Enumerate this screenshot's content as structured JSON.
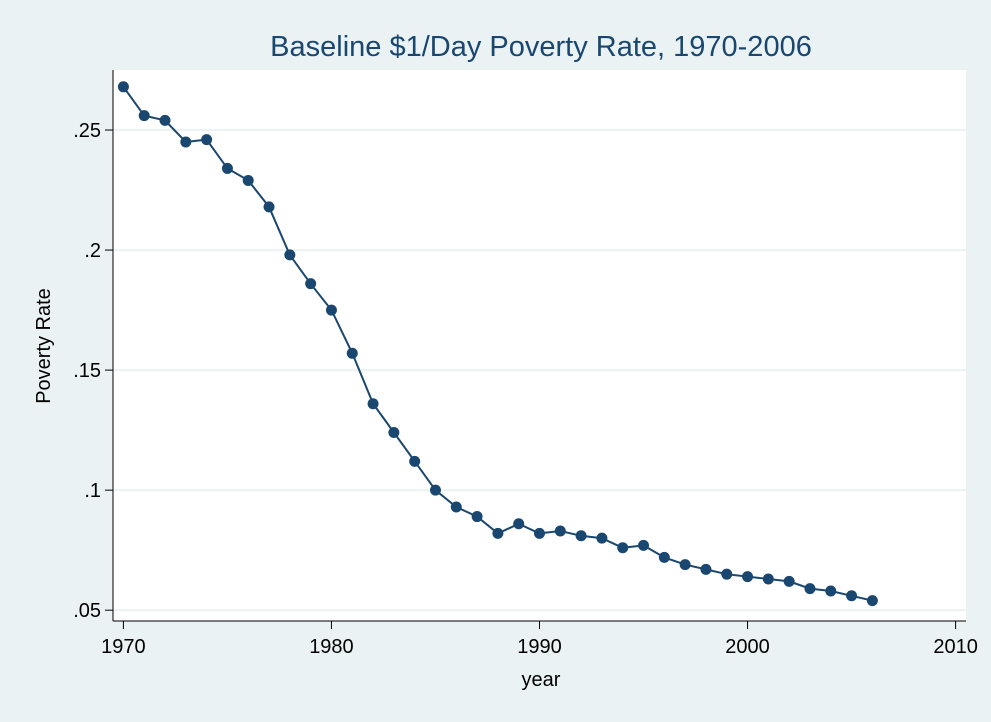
{
  "chart_data": {
    "type": "line",
    "title": "Baseline $1/Day Poverty Rate, 1970-2006",
    "xlabel": "year",
    "ylabel": "Poverty Rate",
    "xlim": [
      1969.5,
      2010.5
    ],
    "ylim": [
      0.0455,
      0.275
    ],
    "xticks": [
      1970,
      1980,
      1990,
      2000,
      2010
    ],
    "xtick_labels": [
      "1970",
      "1980",
      "1990",
      "2000",
      "2010"
    ],
    "yticks": [
      0.05,
      0.1,
      0.15,
      0.2,
      0.25
    ],
    "ytick_labels": [
      ".05",
      ".1",
      ".15",
      ".2",
      ".25"
    ],
    "grid": true,
    "colors": {
      "background": "#eaf2f3",
      "plot_area": "#ffffff",
      "gridline": "#eaf2f3",
      "series": "#1a476f",
      "title": "#1a476f"
    },
    "series": [
      {
        "x": [
          1970,
          1971,
          1972,
          1973,
          1974,
          1975,
          1976,
          1977,
          1978,
          1979,
          1980,
          1981,
          1982,
          1983,
          1984,
          1985,
          1986,
          1987,
          1988,
          1989,
          1990,
          1991,
          1992,
          1993,
          1994,
          1995,
          1996,
          1997,
          1998,
          1999,
          2000,
          2001,
          2002,
          2003,
          2004,
          2005,
          2006
        ],
        "values": [
          0.268,
          0.256,
          0.254,
          0.245,
          0.246,
          0.234,
          0.229,
          0.218,
          0.198,
          0.186,
          0.175,
          0.157,
          0.136,
          0.124,
          0.112,
          0.1,
          0.093,
          0.089,
          0.082,
          0.086,
          0.082,
          0.083,
          0.081,
          0.08,
          0.076,
          0.077,
          0.072,
          0.069,
          0.067,
          0.065,
          0.064,
          0.063,
          0.062,
          0.059,
          0.058,
          0.056,
          0.054
        ]
      }
    ]
  }
}
